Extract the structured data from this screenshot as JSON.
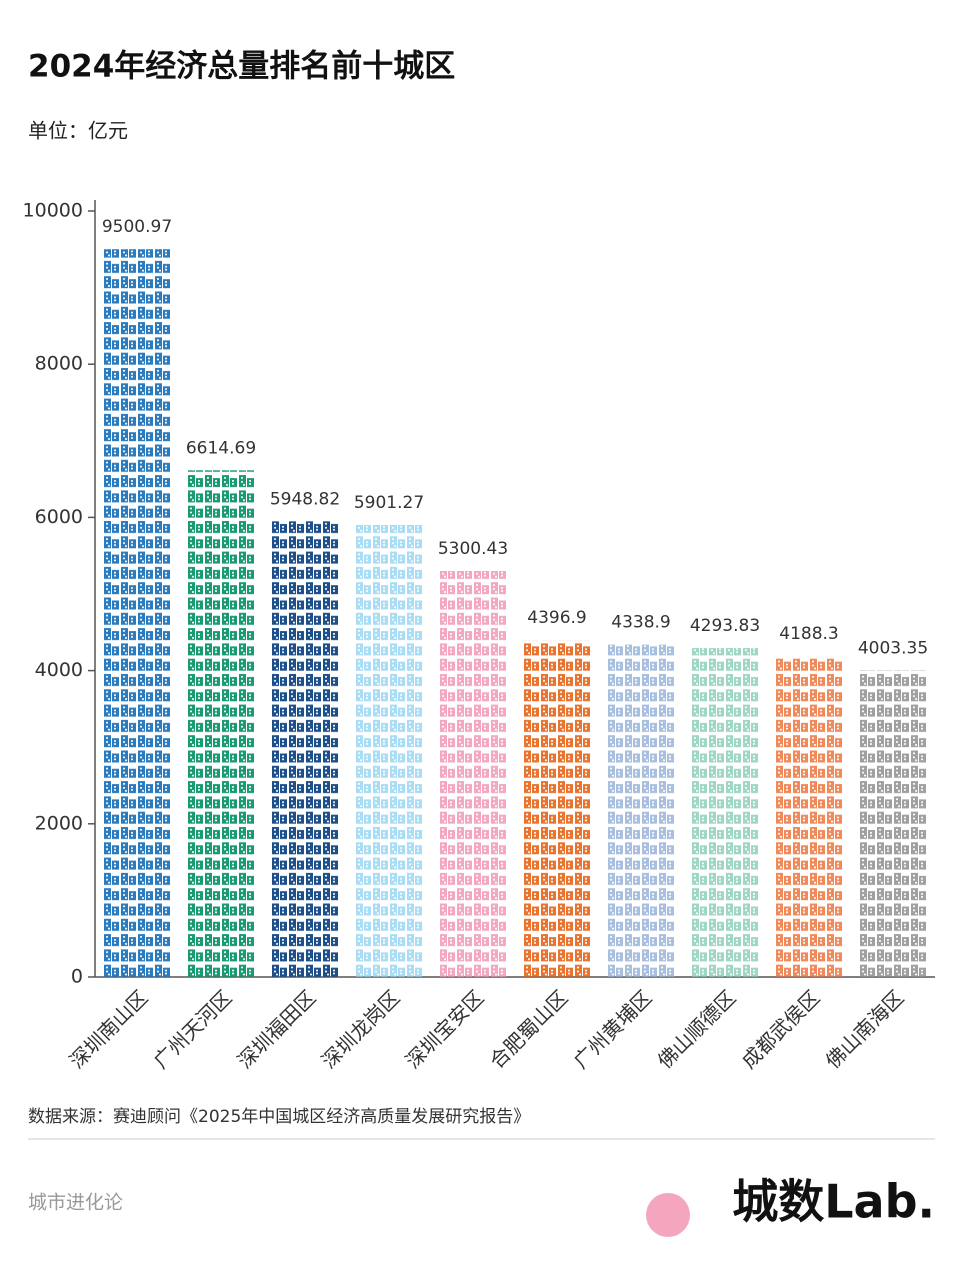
{
  "chart_data": {
    "type": "bar",
    "title": "2024年经济总量排名前十城区",
    "subtitle": "单位：亿元",
    "categories": [
      "深圳南山区",
      "广州天河区",
      "深圳福田区",
      "深圳龙岗区",
      "深圳宝安区",
      "合肥蜀山区",
      "广州黄埔区",
      "佛山顺德区",
      "成都武侯区",
      "佛山南海区"
    ],
    "values": [
      9500.97,
      6614.69,
      5948.82,
      5901.27,
      5300.43,
      4396.9,
      4338.9,
      4293.83,
      4188.3,
      4003.35
    ],
    "colors": [
      "#2b7bbf",
      "#1a9a72",
      "#1d4f8a",
      "#a9dcf5",
      "#f4a7c0",
      "#e8742f",
      "#a8bfdf",
      "#9fd6c4",
      "#f08a5a",
      "#a0a0a0"
    ],
    "ylim": [
      0,
      10000
    ],
    "yticks": [
      0,
      2000,
      4000,
      6000,
      8000,
      10000
    ],
    "source": "数据来源：赛迪顾问《2025年中国城区经济高质量发展研究报告》"
  },
  "footer": {
    "brand": "城市进化论",
    "logo": "城数Lab."
  }
}
